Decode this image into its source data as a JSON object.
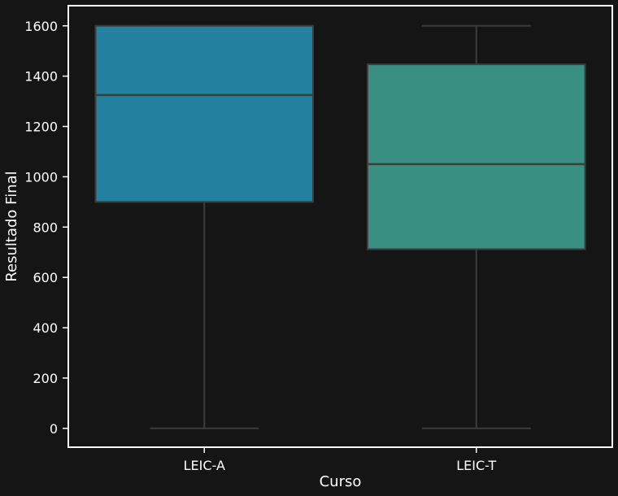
{
  "chart_data": {
    "type": "box",
    "title": "",
    "xlabel": "Curso",
    "ylabel": "Resultado Final",
    "categories": [
      "LEIC-A",
      "LEIC-T"
    ],
    "boxes": [
      {
        "category": "LEIC-A",
        "whisker_low": 0,
        "q1": 900,
        "median": 1325,
        "q3": 1600,
        "whisker_high": 1600,
        "color": "#23809f"
      },
      {
        "category": "LEIC-T",
        "whisker_low": 0,
        "q1": 712,
        "median": 1050,
        "q3": 1447,
        "whisker_high": 1600,
        "color": "#3a8f83"
      }
    ],
    "yticks": [
      0,
      200,
      400,
      600,
      800,
      1000,
      1200,
      1400,
      1600
    ],
    "ylim": [
      -75,
      1680
    ],
    "grid": false,
    "colors": {
      "background": "#151515",
      "axes": "#ffffff",
      "box_line": "#3d3d3d",
      "text": "#ffffff"
    }
  }
}
